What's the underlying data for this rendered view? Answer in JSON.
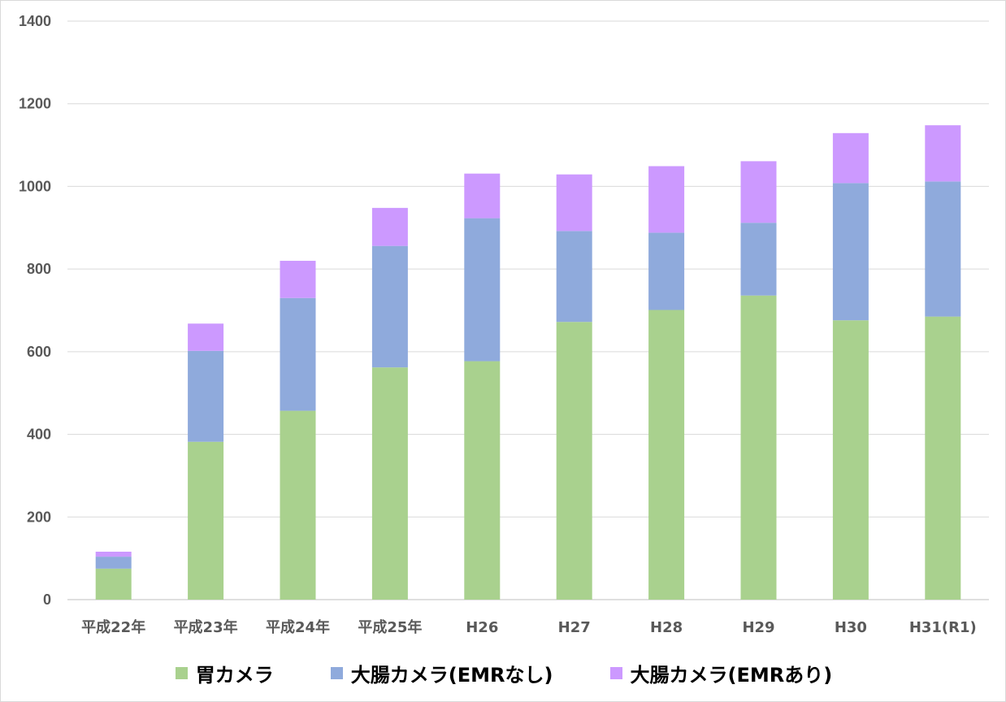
{
  "chart_data": {
    "type": "bar",
    "stacked": true,
    "categories": [
      "平成22年",
      "平成23年",
      "平成24年",
      "平成25年",
      "H26",
      "H27",
      "H28",
      "H29",
      "H30",
      "H31(R1)"
    ],
    "series": [
      {
        "name": "胃カメラ",
        "color": "#a9d18e",
        "values": [
          75,
          382,
          457,
          562,
          577,
          672,
          701,
          736,
          676,
          685
        ]
      },
      {
        "name": "大腸カメラ(EMRなし)",
        "color": "#8faadc",
        "values": [
          29,
          220,
          273,
          294,
          346,
          220,
          187,
          176,
          332,
          327
        ]
      },
      {
        "name": "大腸カメラ(EMRあり)",
        "color": "#cc99ff",
        "values": [
          12,
          66,
          90,
          92,
          108,
          137,
          161,
          149,
          121,
          136
        ]
      }
    ],
    "ylim": [
      0,
      1400
    ],
    "yticks": [
      0,
      200,
      400,
      600,
      800,
      1000,
      1200,
      1400
    ],
    "grid": true,
    "legend_position": "bottom"
  }
}
